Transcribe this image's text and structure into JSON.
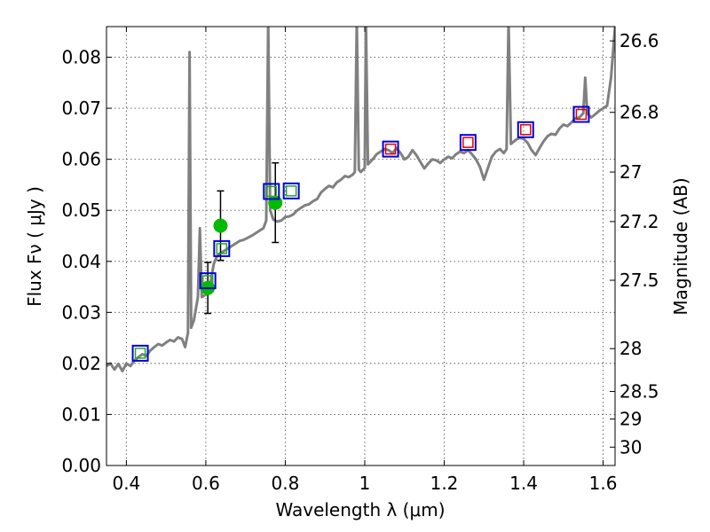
{
  "chart_data": {
    "type": "line",
    "xlabel": "Wavelength  λ (μm)",
    "ylabel_left": "Flux  Fν  ( μJy )",
    "ylabel_right": "Magnitude (AB)",
    "xlim": [
      0.35,
      1.63
    ],
    "ylim": [
      0.0,
      0.086
    ],
    "grid": true,
    "x_ticks": [
      0.4,
      0.6,
      0.8,
      1.0,
      1.2,
      1.4,
      1.6
    ],
    "x_tick_labels": [
      "0.4",
      "0.6",
      "0.8",
      "1",
      "1.2",
      "1.4",
      "1.6"
    ],
    "y_ticks": [
      0.0,
      0.01,
      0.02,
      0.03,
      0.04,
      0.05,
      0.06,
      0.07,
      0.08
    ],
    "y_tick_labels": [
      "0.00",
      "0.01",
      "0.02",
      "0.03",
      "0.04",
      "0.05",
      "0.06",
      "0.07",
      "0.08"
    ],
    "right_ticks": [
      {
        "label": "26.6",
        "flux": 0.0832
      },
      {
        "label": "26.8",
        "flux": 0.0692
      },
      {
        "label": "27",
        "flux": 0.0575
      },
      {
        "label": "27.2",
        "flux": 0.0478
      },
      {
        "label": "27.5",
        "flux": 0.0363
      },
      {
        "label": "28",
        "flux": 0.0229
      },
      {
        "label": "28.5",
        "flux": 0.0145
      },
      {
        "label": "29",
        "flux": 0.0091
      },
      {
        "label": "30",
        "flux": 0.0036
      }
    ],
    "series": [
      {
        "kind": "model_spectrum",
        "color": "#808080",
        "points": [
          [
            0.35,
            0.0195
          ],
          [
            0.36,
            0.02
          ],
          [
            0.37,
            0.0188
          ],
          [
            0.38,
            0.0199
          ],
          [
            0.39,
            0.0185
          ],
          [
            0.4,
            0.02
          ],
          [
            0.41,
            0.0195
          ],
          [
            0.42,
            0.0205
          ],
          [
            0.43,
            0.0212
          ],
          [
            0.44,
            0.0218
          ],
          [
            0.45,
            0.0215
          ],
          [
            0.46,
            0.0225
          ],
          [
            0.47,
            0.0232
          ],
          [
            0.48,
            0.0238
          ],
          [
            0.49,
            0.0235
          ],
          [
            0.5,
            0.0241
          ],
          [
            0.51,
            0.0246
          ],
          [
            0.52,
            0.0243
          ],
          [
            0.53,
            0.0251
          ],
          [
            0.54,
            0.0248
          ],
          [
            0.548,
            0.0232
          ],
          [
            0.555,
            0.026
          ],
          [
            0.559,
            0.081
          ],
          [
            0.563,
            0.027
          ],
          [
            0.57,
            0.0285
          ],
          [
            0.58,
            0.033
          ],
          [
            0.585,
            0.0465
          ],
          [
            0.59,
            0.033
          ],
          [
            0.6,
            0.0335
          ],
          [
            0.607,
            0.0345
          ],
          [
            0.612,
            0.036
          ],
          [
            0.62,
            0.0395
          ],
          [
            0.628,
            0.041
          ],
          [
            0.635,
            0.0415
          ],
          [
            0.645,
            0.042
          ],
          [
            0.655,
            0.0425
          ],
          [
            0.665,
            0.043
          ],
          [
            0.675,
            0.0435
          ],
          [
            0.685,
            0.044
          ],
          [
            0.695,
            0.0442
          ],
          [
            0.705,
            0.0446
          ],
          [
            0.715,
            0.045
          ],
          [
            0.725,
            0.0455
          ],
          [
            0.735,
            0.046
          ],
          [
            0.745,
            0.0465
          ],
          [
            0.752,
            0.048
          ],
          [
            0.757,
            0.087
          ],
          [
            0.762,
            0.05
          ],
          [
            0.77,
            0.0482
          ],
          [
            0.78,
            0.0478
          ],
          [
            0.79,
            0.048
          ],
          [
            0.8,
            0.0487
          ],
          [
            0.81,
            0.0488
          ],
          [
            0.82,
            0.0492
          ],
          [
            0.83,
            0.05
          ],
          [
            0.84,
            0.0505
          ],
          [
            0.85,
            0.051
          ],
          [
            0.86,
            0.0512
          ],
          [
            0.87,
            0.0518
          ],
          [
            0.88,
            0.0522
          ],
          [
            0.89,
            0.0535
          ],
          [
            0.9,
            0.0542
          ],
          [
            0.91,
            0.0548
          ],
          [
            0.92,
            0.0545
          ],
          [
            0.93,
            0.0555
          ],
          [
            0.94,
            0.056
          ],
          [
            0.95,
            0.0567
          ],
          [
            0.96,
            0.0565
          ],
          [
            0.97,
            0.057
          ],
          [
            0.975,
            0.0575
          ],
          [
            0.98,
            0.087
          ],
          [
            0.985,
            0.058
          ],
          [
            0.99,
            0.0575
          ],
          [
            1.0,
            0.0583
          ],
          [
            1.003,
            0.087
          ],
          [
            1.008,
            0.059
          ],
          [
            1.02,
            0.06
          ],
          [
            1.03,
            0.061
          ],
          [
            1.04,
            0.0615
          ],
          [
            1.05,
            0.062
          ],
          [
            1.06,
            0.0618
          ],
          [
            1.07,
            0.0612
          ],
          [
            1.08,
            0.0622
          ],
          [
            1.09,
            0.0612
          ],
          [
            1.1,
            0.06
          ],
          [
            1.11,
            0.0605
          ],
          [
            1.12,
            0.0618
          ],
          [
            1.13,
            0.0608
          ],
          [
            1.14,
            0.0595
          ],
          [
            1.15,
            0.0582
          ],
          [
            1.16,
            0.0592
          ],
          [
            1.17,
            0.06
          ],
          [
            1.18,
            0.0598
          ],
          [
            1.19,
            0.0593
          ],
          [
            1.2,
            0.06
          ],
          [
            1.21,
            0.0605
          ],
          [
            1.22,
            0.0602
          ],
          [
            1.23,
            0.061
          ],
          [
            1.24,
            0.0615
          ],
          [
            1.25,
            0.0612
          ],
          [
            1.26,
            0.0618
          ],
          [
            1.27,
            0.061
          ],
          [
            1.28,
            0.06
          ],
          [
            1.29,
            0.0585
          ],
          [
            1.3,
            0.056
          ],
          [
            1.31,
            0.0583
          ],
          [
            1.32,
            0.0605
          ],
          [
            1.33,
            0.0615
          ],
          [
            1.34,
            0.062
          ],
          [
            1.35,
            0.0612
          ],
          [
            1.357,
            0.062
          ],
          [
            1.362,
            0.087
          ],
          [
            1.368,
            0.063
          ],
          [
            1.38,
            0.0638
          ],
          [
            1.39,
            0.0642
          ],
          [
            1.4,
            0.064
          ],
          [
            1.41,
            0.0632
          ],
          [
            1.42,
            0.0618
          ],
          [
            1.43,
            0.0608
          ],
          [
            1.44,
            0.0622
          ],
          [
            1.45,
            0.0635
          ],
          [
            1.46,
            0.0645
          ],
          [
            1.47,
            0.065
          ],
          [
            1.48,
            0.0648
          ],
          [
            1.49,
            0.066
          ],
          [
            1.5,
            0.0668
          ],
          [
            1.51,
            0.0665
          ],
          [
            1.52,
            0.0672
          ],
          [
            1.53,
            0.068
          ],
          [
            1.54,
            0.0682
          ],
          [
            1.55,
            0.069
          ],
          [
            1.555,
            0.076
          ],
          [
            1.56,
            0.069
          ],
          [
            1.57,
            0.0682
          ],
          [
            1.58,
            0.0688
          ],
          [
            1.59,
            0.0695
          ],
          [
            1.6,
            0.07
          ],
          [
            1.61,
            0.0705
          ],
          [
            1.62,
            0.076
          ],
          [
            1.63,
            0.086
          ]
        ]
      },
      {
        "kind": "observed",
        "marker": "circle",
        "color": "#00bb00",
        "points": [
          {
            "x": 0.605,
            "y": 0.0348,
            "err": 0.005
          },
          {
            "x": 0.637,
            "y": 0.047,
            "err": 0.0068
          },
          {
            "x": 0.775,
            "y": 0.0515,
            "err": 0.0078
          }
        ]
      },
      {
        "kind": "model_band_large",
        "marker": "square",
        "color": "#0000dd",
        "points": [
          {
            "x": 0.435,
            "y": 0.022
          },
          {
            "x": 0.605,
            "y": 0.0362
          },
          {
            "x": 0.64,
            "y": 0.0425
          },
          {
            "x": 0.765,
            "y": 0.0537
          },
          {
            "x": 0.815,
            "y": 0.0538
          },
          {
            "x": 1.065,
            "y": 0.062
          },
          {
            "x": 1.26,
            "y": 0.0633
          },
          {
            "x": 1.405,
            "y": 0.0658
          },
          {
            "x": 1.545,
            "y": 0.0688
          }
        ]
      },
      {
        "kind": "model_band_green",
        "marker": "square",
        "color": "#22aa22",
        "points": [
          {
            "x": 0.435,
            "y": 0.022
          },
          {
            "x": 0.605,
            "y": 0.0362
          },
          {
            "x": 0.64,
            "y": 0.0425
          },
          {
            "x": 0.765,
            "y": 0.0537
          },
          {
            "x": 0.815,
            "y": 0.0538
          }
        ]
      },
      {
        "kind": "model_band_red",
        "marker": "square",
        "color": "#dd0000",
        "points": [
          {
            "x": 1.065,
            "y": 0.062
          },
          {
            "x": 1.26,
            "y": 0.0633
          },
          {
            "x": 1.405,
            "y": 0.0658
          },
          {
            "x": 1.545,
            "y": 0.0688
          }
        ]
      }
    ]
  }
}
